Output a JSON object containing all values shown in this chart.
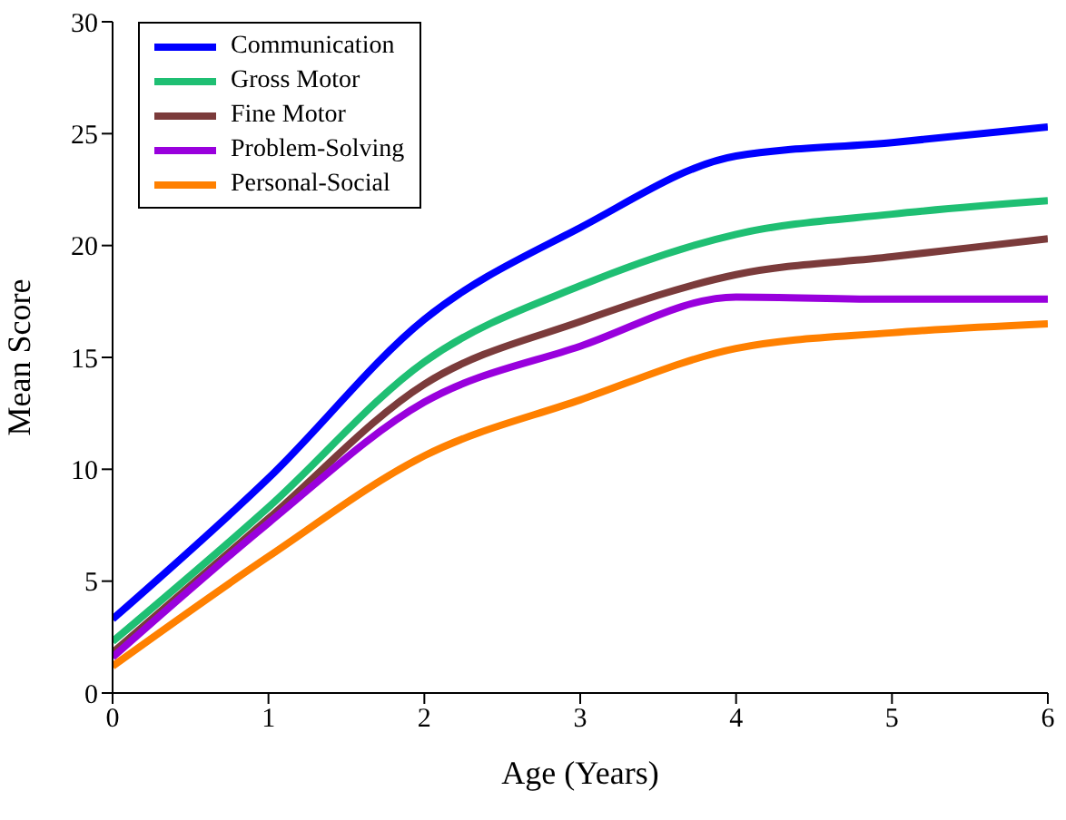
{
  "chart_data": {
    "type": "line",
    "xlabel": "Age (Years)",
    "ylabel": "Mean Score",
    "x": [
      0,
      1,
      2,
      3,
      4,
      5,
      6
    ],
    "series": [
      {
        "name": "Communication",
        "color": "#0000ff",
        "values": [
          3.3,
          9.6,
          16.7,
          20.8,
          24.0,
          24.6,
          25.3
        ]
      },
      {
        "name": "Gross Motor",
        "color": "#1fbf73",
        "values": [
          2.3,
          8.3,
          14.8,
          18.2,
          20.5,
          21.4,
          22.0
        ]
      },
      {
        "name": "Fine Motor",
        "color": "#7b3b3b",
        "values": [
          1.8,
          7.8,
          13.8,
          16.6,
          18.7,
          19.5,
          20.3
        ]
      },
      {
        "name": "Problem-Solving",
        "color": "#9900dd",
        "values": [
          1.6,
          7.6,
          13.0,
          15.5,
          17.7,
          17.6,
          17.6
        ]
      },
      {
        "name": "Personal-Social",
        "color": "#ff8000",
        "values": [
          1.2,
          6.1,
          10.6,
          13.1,
          15.4,
          16.1,
          16.5
        ]
      }
    ],
    "xlim": [
      0,
      6
    ],
    "xticks": [
      0,
      1,
      2,
      3,
      4,
      5,
      6
    ],
    "ylim": [
      0,
      30
    ],
    "yticks": [
      0,
      5,
      10,
      15,
      20,
      25,
      30
    ],
    "grid": false,
    "legend": "top left",
    "marker": "none",
    "line_style": "solid"
  }
}
